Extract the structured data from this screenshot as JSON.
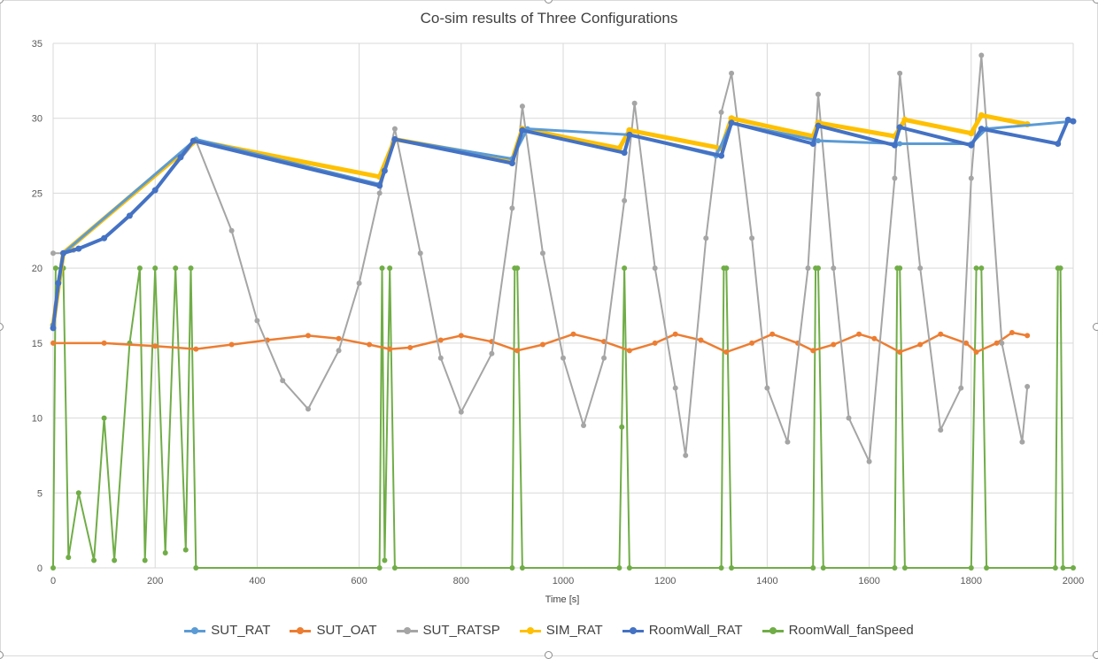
{
  "chart_data": {
    "type": "scatter",
    "title": "Co-sim results of Three Configurations",
    "xlabel": "Time [s]",
    "ylabel": "",
    "xlim": [
      0,
      2000
    ],
    "ylim": [
      0,
      35
    ],
    "xticks": [
      0,
      200,
      400,
      600,
      800,
      1000,
      1200,
      1400,
      1600,
      1800,
      2000
    ],
    "yticks": [
      0,
      5,
      10,
      15,
      20,
      25,
      30,
      35
    ],
    "grid": true,
    "legend_position": "bottom",
    "series": [
      {
        "name": "SUT_RAT",
        "color": "#5B9BD5",
        "x": [
          0,
          20,
          280,
          640,
          670,
          900,
          930,
          1130,
          1300,
          1330,
          1500,
          1660,
          1800,
          1830,
          2000
        ],
        "y": [
          16.2,
          21.0,
          28.6,
          25.6,
          28.6,
          27.3,
          29.3,
          28.9,
          27.5,
          29.7,
          28.5,
          28.3,
          28.3,
          29.3,
          29.8
        ]
      },
      {
        "name": "SUT_OAT",
        "color": "#ED7D31",
        "x": [
          0,
          100,
          200,
          280,
          350,
          420,
          500,
          560,
          620,
          660,
          700,
          760,
          800,
          860,
          910,
          960,
          1020,
          1080,
          1130,
          1180,
          1220,
          1270,
          1320,
          1370,
          1410,
          1460,
          1490,
          1530,
          1580,
          1610,
          1660,
          1700,
          1740,
          1790,
          1810,
          1850,
          1880,
          1910
        ],
        "y": [
          15.0,
          15.0,
          14.8,
          14.6,
          14.9,
          15.2,
          15.5,
          15.3,
          14.9,
          14.6,
          14.7,
          15.2,
          15.5,
          15.1,
          14.5,
          14.9,
          15.6,
          15.1,
          14.5,
          15.0,
          15.6,
          15.2,
          14.4,
          15.0,
          15.6,
          15.0,
          14.5,
          14.9,
          15.6,
          15.3,
          14.4,
          14.9,
          15.6,
          15.0,
          14.4,
          15.0,
          15.7,
          15.5
        ]
      },
      {
        "name": "SUT_RATSP",
        "color": "#A5A5A5",
        "x": [
          0,
          20,
          40,
          100,
          200,
          280,
          350,
          400,
          450,
          500,
          560,
          600,
          640,
          670,
          720,
          760,
          800,
          860,
          900,
          920,
          960,
          1000,
          1040,
          1080,
          1120,
          1140,
          1180,
          1220,
          1240,
          1280,
          1310,
          1330,
          1370,
          1400,
          1440,
          1480,
          1500,
          1530,
          1560,
          1600,
          1650,
          1660,
          1700,
          1740,
          1780,
          1800,
          1820,
          1860,
          1900,
          1910
        ],
        "y": [
          21.0,
          21.0,
          21.2,
          22.0,
          25.2,
          28.5,
          22.5,
          16.5,
          12.5,
          10.6,
          14.5,
          19.0,
          25.0,
          29.3,
          21.0,
          14.0,
          10.4,
          14.3,
          24.0,
          30.8,
          21.0,
          14.0,
          9.5,
          14.0,
          24.5,
          31.0,
          20.0,
          12.0,
          7.5,
          22.0,
          30.4,
          33.0,
          22.0,
          12.0,
          8.4,
          20.0,
          31.6,
          20.0,
          10.0,
          7.1,
          26.0,
          33.0,
          20.0,
          9.2,
          12.0,
          26.0,
          34.2,
          15.0,
          8.4,
          12.1
        ]
      },
      {
        "name": "SIM_RAT",
        "color": "#FFC000",
        "x": [
          0,
          20,
          280,
          640,
          670,
          900,
          920,
          1110,
          1130,
          1310,
          1330,
          1490,
          1500,
          1650,
          1670,
          1800,
          1820,
          1910
        ],
        "y": [
          16.2,
          21.0,
          28.5,
          26.1,
          28.6,
          27.2,
          29.3,
          28.0,
          29.2,
          28.0,
          30.0,
          28.8,
          29.7,
          28.8,
          29.9,
          29.0,
          30.2,
          29.6
        ]
      },
      {
        "name": "RoomWall_RAT",
        "color": "#4472C4",
        "x": [
          0,
          10,
          20,
          50,
          100,
          150,
          200,
          250,
          275,
          640,
          650,
          670,
          900,
          920,
          1120,
          1130,
          1310,
          1330,
          1490,
          1500,
          1650,
          1660,
          1800,
          1820,
          1970,
          1990,
          2000
        ],
        "y": [
          16.0,
          19.0,
          21.0,
          21.3,
          22.0,
          23.5,
          25.2,
          27.4,
          28.5,
          25.5,
          26.5,
          28.6,
          27.0,
          29.2,
          27.7,
          28.9,
          27.5,
          29.7,
          28.3,
          29.5,
          28.2,
          29.4,
          28.2,
          29.3,
          28.3,
          29.9,
          29.8
        ]
      },
      {
        "name": "RoomWall_fanSpeed",
        "color": "#70AD47",
        "x": [
          0,
          5,
          20,
          30,
          50,
          80,
          100,
          120,
          150,
          170,
          180,
          200,
          220,
          240,
          260,
          270,
          280,
          640,
          645,
          650,
          660,
          670,
          900,
          905,
          910,
          920,
          1110,
          1115,
          1120,
          1130,
          1310,
          1315,
          1320,
          1330,
          1490,
          1495,
          1500,
          1510,
          1650,
          1655,
          1660,
          1670,
          1800,
          1810,
          1820,
          1830,
          1965,
          1970,
          1975,
          1980,
          2000
        ],
        "y": [
          0,
          20,
          20,
          0.7,
          5,
          0.5,
          10,
          0.5,
          15,
          20,
          0.5,
          20,
          1.0,
          20,
          1.2,
          20,
          0,
          0,
          20,
          0.5,
          20,
          0,
          0,
          20,
          20,
          0,
          0,
          9.4,
          20,
          0,
          0,
          20,
          20,
          0,
          0,
          20,
          20,
          0,
          0,
          20,
          20,
          0,
          0,
          20,
          20,
          0,
          0,
          20,
          20,
          0,
          0
        ]
      }
    ]
  }
}
